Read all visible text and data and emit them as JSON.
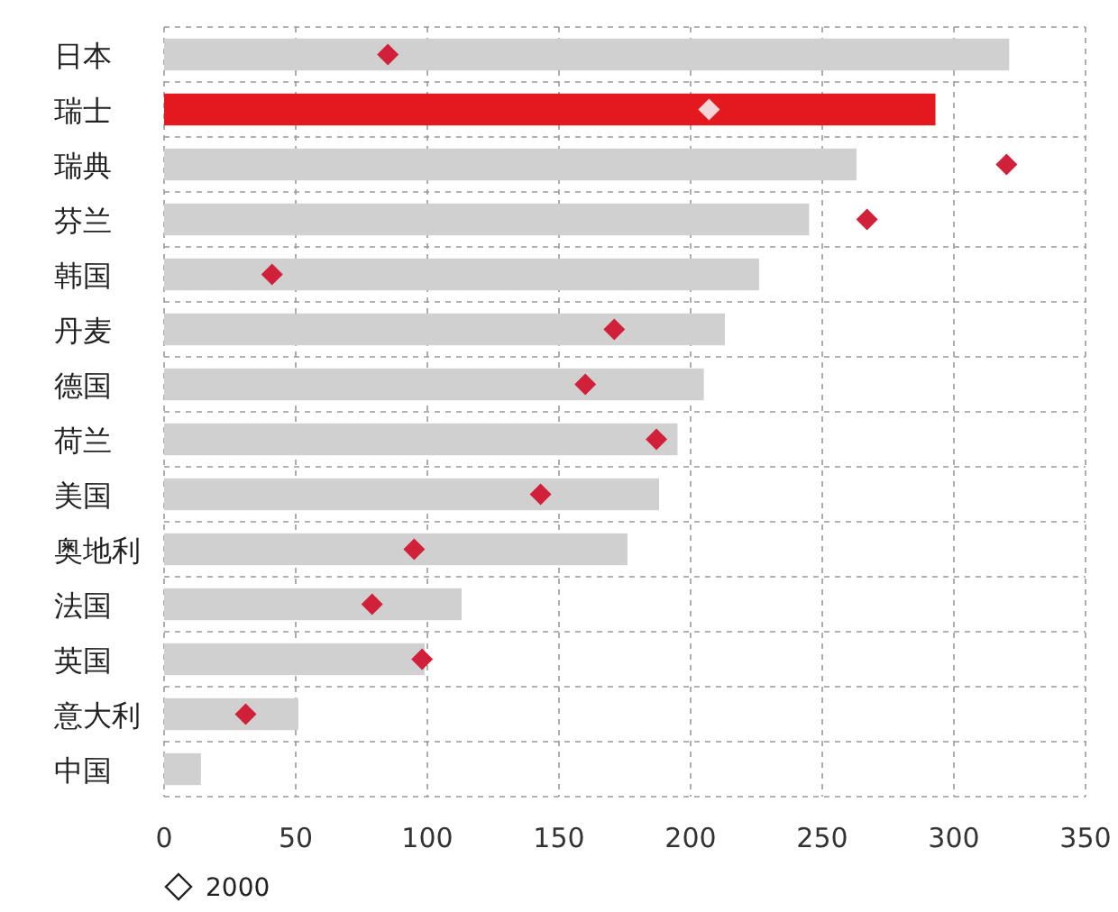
{
  "chart_data": {
    "type": "bar",
    "orientation": "horizontal",
    "categories": [
      "日本",
      "瑞士",
      "瑞典",
      "芬兰",
      "韩国",
      "丹麦",
      "德国",
      "荷兰",
      "美国",
      "奥地利",
      "法国",
      "英国",
      "意大利",
      "中国"
    ],
    "series": [
      {
        "type": "bar",
        "colors": [
          "#d0d0d0",
          "#e3191e",
          "#d0d0d0",
          "#d0d0d0",
          "#d0d0d0",
          "#d0d0d0",
          "#d0d0d0",
          "#d0d0d0",
          "#d0d0d0",
          "#d0d0d0",
          "#d0d0d0",
          "#d0d0d0",
          "#d0d0d0",
          "#d0d0d0"
        ],
        "values": [
          321,
          293,
          263,
          245,
          226,
          213,
          205,
          195,
          188,
          176,
          113,
          99,
          51,
          14
        ]
      },
      {
        "type": "scatter",
        "name": "2000",
        "marker": "diamond",
        "colors": [
          "#d1213a",
          "#f4d6d6",
          "#d1213a",
          "#d1213a",
          "#d1213a",
          "#d1213a",
          "#d1213a",
          "#d1213a",
          "#d1213a",
          "#d1213a",
          "#d1213a",
          "#d1213a",
          "#d1213a",
          null
        ],
        "values": [
          85,
          207,
          320,
          267,
          41,
          171,
          160,
          187,
          143,
          95,
          79,
          98,
          31,
          null
        ]
      }
    ],
    "xlim": [
      0,
      350
    ],
    "xticks": [
      0,
      50,
      100,
      150,
      200,
      250,
      300,
      350
    ],
    "grid": true,
    "legend": "bottom left"
  }
}
